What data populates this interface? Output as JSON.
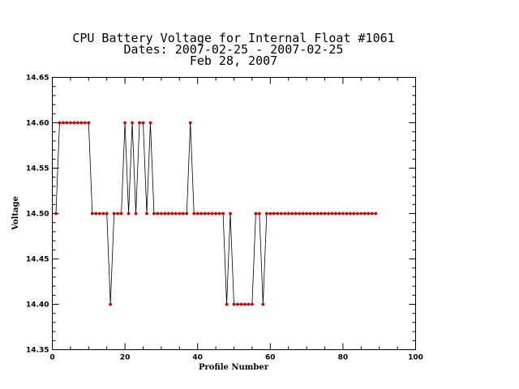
{
  "chart_data": {
    "type": "line",
    "title": [
      "CPU Battery Voltage for Internal Float #1061",
      "Dates:  2007-02-25 -  2007-02-25",
      "Feb 28, 2007"
    ],
    "xlabel": "Profile Number",
    "ylabel": "Voltage",
    "xlim": [
      0,
      100
    ],
    "ylim": [
      14.35,
      14.65
    ],
    "x_ticks": [
      0,
      20,
      40,
      60,
      80,
      100
    ],
    "x_tick_labels": [
      "0",
      "20",
      "40",
      "60",
      "80",
      "100"
    ],
    "y_ticks": [
      14.35,
      14.4,
      14.45,
      14.5,
      14.55,
      14.6,
      14.65
    ],
    "y_tick_labels": [
      "14.35",
      "14.40",
      "14.45",
      "14.50",
      "14.55",
      "14.60",
      "14.65"
    ],
    "grid": false,
    "line_color": "#000000",
    "marker_color": "#cc0000",
    "series": [
      {
        "x": [
          1,
          2,
          3,
          4,
          5,
          6,
          7,
          8,
          9,
          10,
          11,
          12,
          13,
          14,
          15,
          16,
          17,
          18,
          19,
          20,
          21,
          22,
          23,
          24,
          25,
          26,
          27,
          28,
          29,
          30,
          31,
          32,
          33,
          34,
          35,
          36,
          37,
          38,
          39,
          40,
          41,
          42,
          43,
          44,
          45,
          46,
          47,
          48,
          49,
          50,
          51,
          52,
          53,
          54,
          55,
          56,
          57,
          58,
          59,
          60,
          61,
          62,
          63,
          64,
          65,
          66,
          67,
          68,
          69,
          70,
          71,
          72,
          73,
          74,
          75,
          76,
          77,
          78,
          79,
          80,
          81,
          82,
          83,
          84,
          85,
          86,
          87,
          88,
          89
        ],
        "y": [
          14.5,
          14.6,
          14.6,
          14.6,
          14.6,
          14.6,
          14.6,
          14.6,
          14.6,
          14.6,
          14.5,
          14.5,
          14.5,
          14.5,
          14.5,
          14.4,
          14.5,
          14.5,
          14.5,
          14.6,
          14.5,
          14.6,
          14.5,
          14.6,
          14.6,
          14.5,
          14.6,
          14.5,
          14.5,
          14.5,
          14.5,
          14.5,
          14.5,
          14.5,
          14.5,
          14.5,
          14.5,
          14.6,
          14.5,
          14.5,
          14.5,
          14.5,
          14.5,
          14.5,
          14.5,
          14.5,
          14.5,
          14.4,
          14.5,
          14.4,
          14.4,
          14.4,
          14.4,
          14.4,
          14.4,
          14.5,
          14.5,
          14.4,
          14.5,
          14.5,
          14.5,
          14.5,
          14.5,
          14.5,
          14.5,
          14.5,
          14.5,
          14.5,
          14.5,
          14.5,
          14.5,
          14.5,
          14.5,
          14.5,
          14.5,
          14.5,
          14.5,
          14.5,
          14.5,
          14.5,
          14.5,
          14.5,
          14.5,
          14.5,
          14.5,
          14.5,
          14.5,
          14.5,
          14.5
        ]
      }
    ]
  }
}
